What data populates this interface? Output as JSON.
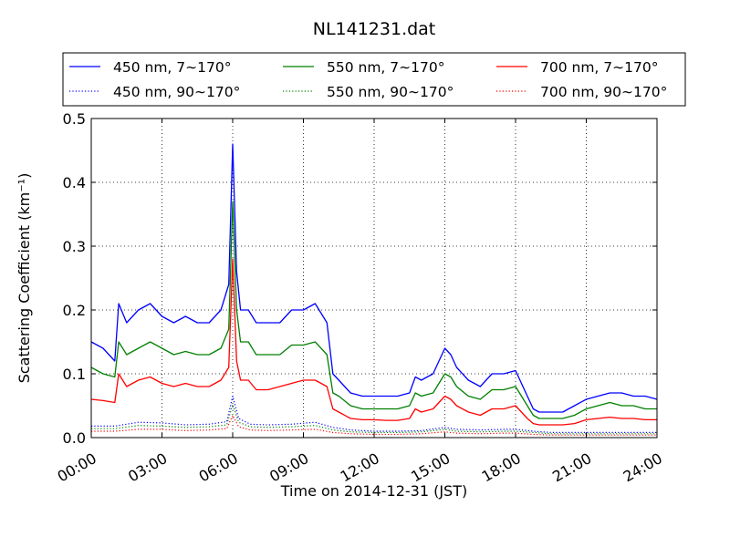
{
  "chart_data": {
    "type": "line",
    "title": "NL141231.dat",
    "xlabel": "Time on 2014-12-31 (JST)",
    "ylabel": "Scattering Coefficient (km⁻¹)",
    "xlim": [
      "00:00",
      "24:00"
    ],
    "ylim": [
      0,
      0.5
    ],
    "x_ticks": [
      "00:00",
      "03:00",
      "06:00",
      "09:00",
      "12:00",
      "15:00",
      "18:00",
      "21:00",
      "24:00"
    ],
    "y_ticks": [
      "0.0",
      "0.1",
      "0.2",
      "0.3",
      "0.4",
      "0.5"
    ],
    "grid": true,
    "legend_position": "top",
    "series": [
      {
        "name": "450 nm, 7∼170°",
        "color": "#0000ff",
        "style": "solid",
        "x": [
          "00:00",
          "00:30",
          "01:00",
          "01:10",
          "01:30",
          "02:00",
          "02:30",
          "03:00",
          "03:30",
          "04:00",
          "04:30",
          "05:00",
          "05:30",
          "05:50",
          "06:00",
          "06:10",
          "06:20",
          "06:40",
          "07:00",
          "07:30",
          "08:00",
          "08:30",
          "09:00",
          "09:30",
          "10:00",
          "10:15",
          "10:30",
          "11:00",
          "11:30",
          "12:00",
          "12:30",
          "13:00",
          "13:30",
          "13:45",
          "14:00",
          "14:30",
          "15:00",
          "15:15",
          "15:30",
          "16:00",
          "16:30",
          "17:00",
          "17:30",
          "18:00",
          "18:30",
          "18:45",
          "19:00",
          "19:30",
          "20:00",
          "20:30",
          "21:00",
          "21:30",
          "22:00",
          "22:30",
          "23:00",
          "23:30",
          "24:00"
        ],
        "y": [
          0.15,
          0.14,
          0.12,
          0.21,
          0.18,
          0.2,
          0.21,
          0.19,
          0.18,
          0.19,
          0.18,
          0.18,
          0.2,
          0.24,
          0.46,
          0.26,
          0.2,
          0.2,
          0.18,
          0.18,
          0.18,
          0.2,
          0.2,
          0.21,
          0.18,
          0.1,
          0.09,
          0.07,
          0.065,
          0.065,
          0.065,
          0.065,
          0.07,
          0.095,
          0.09,
          0.1,
          0.14,
          0.13,
          0.11,
          0.09,
          0.08,
          0.1,
          0.1,
          0.105,
          0.065,
          0.045,
          0.04,
          0.04,
          0.04,
          0.05,
          0.06,
          0.065,
          0.07,
          0.07,
          0.065,
          0.065,
          0.06
        ]
      },
      {
        "name": "450 nm, 90∼170°",
        "color": "#0000ff",
        "style": "dotted",
        "x": [
          "00:00",
          "01:00",
          "02:00",
          "03:00",
          "04:00",
          "05:00",
          "05:45",
          "06:00",
          "06:15",
          "06:45",
          "07:30",
          "08:30",
          "09:30",
          "10:15",
          "11:00",
          "12:00",
          "13:00",
          "14:00",
          "15:00",
          "15:30",
          "16:30",
          "17:30",
          "18:00",
          "18:45",
          "19:30",
          "21:00",
          "22:30",
          "24:00"
        ],
        "y": [
          0.018,
          0.018,
          0.024,
          0.023,
          0.02,
          0.021,
          0.025,
          0.065,
          0.03,
          0.021,
          0.02,
          0.021,
          0.024,
          0.016,
          0.012,
          0.01,
          0.01,
          0.011,
          0.016,
          0.013,
          0.012,
          0.013,
          0.013,
          0.01,
          0.008,
          0.008,
          0.008,
          0.008
        ]
      },
      {
        "name": "550 nm, 7∼170°",
        "color": "#008000",
        "style": "solid",
        "x": [
          "00:00",
          "00:30",
          "01:00",
          "01:10",
          "01:30",
          "02:00",
          "02:30",
          "03:00",
          "03:30",
          "04:00",
          "04:30",
          "05:00",
          "05:30",
          "05:50",
          "06:00",
          "06:10",
          "06:20",
          "06:40",
          "07:00",
          "07:30",
          "08:00",
          "08:30",
          "09:00",
          "09:30",
          "10:00",
          "10:15",
          "10:30",
          "11:00",
          "11:30",
          "12:00",
          "12:30",
          "13:00",
          "13:30",
          "13:45",
          "14:00",
          "14:30",
          "15:00",
          "15:15",
          "15:30",
          "16:00",
          "16:30",
          "17:00",
          "17:30",
          "18:00",
          "18:30",
          "18:45",
          "19:00",
          "19:30",
          "20:00",
          "20:30",
          "21:00",
          "21:30",
          "22:00",
          "22:30",
          "23:00",
          "23:30",
          "24:00"
        ],
        "y": [
          0.11,
          0.1,
          0.095,
          0.15,
          0.13,
          0.14,
          0.15,
          0.14,
          0.13,
          0.135,
          0.13,
          0.13,
          0.14,
          0.17,
          0.37,
          0.2,
          0.15,
          0.15,
          0.13,
          0.13,
          0.13,
          0.145,
          0.145,
          0.15,
          0.13,
          0.07,
          0.065,
          0.05,
          0.045,
          0.045,
          0.045,
          0.045,
          0.05,
          0.07,
          0.065,
          0.07,
          0.1,
          0.095,
          0.08,
          0.065,
          0.06,
          0.075,
          0.075,
          0.08,
          0.05,
          0.035,
          0.03,
          0.03,
          0.03,
          0.035,
          0.045,
          0.05,
          0.055,
          0.05,
          0.05,
          0.045,
          0.045
        ]
      },
      {
        "name": "550 nm, 90∼170°",
        "color": "#008000",
        "style": "dotted",
        "x": [
          "00:00",
          "01:00",
          "02:00",
          "03:00",
          "04:00",
          "05:00",
          "05:45",
          "06:00",
          "06:15",
          "06:45",
          "07:30",
          "08:30",
          "09:30",
          "10:15",
          "11:00",
          "12:00",
          "13:00",
          "14:00",
          "15:00",
          "15:30",
          "16:30",
          "17:30",
          "18:00",
          "18:45",
          "19:30",
          "21:00",
          "22:30",
          "24:00"
        ],
        "y": [
          0.014,
          0.014,
          0.019,
          0.018,
          0.016,
          0.017,
          0.02,
          0.052,
          0.024,
          0.017,
          0.016,
          0.017,
          0.019,
          0.012,
          0.009,
          0.008,
          0.008,
          0.009,
          0.013,
          0.01,
          0.009,
          0.01,
          0.01,
          0.008,
          0.006,
          0.006,
          0.006,
          0.006
        ]
      },
      {
        "name": "700 nm, 7∼170°",
        "color": "#ff0000",
        "style": "solid",
        "x": [
          "00:00",
          "00:30",
          "01:00",
          "01:10",
          "01:30",
          "02:00",
          "02:30",
          "03:00",
          "03:30",
          "04:00",
          "04:30",
          "05:00",
          "05:30",
          "05:50",
          "06:00",
          "06:10",
          "06:20",
          "06:40",
          "07:00",
          "07:30",
          "08:00",
          "08:30",
          "09:00",
          "09:30",
          "10:00",
          "10:15",
          "10:30",
          "11:00",
          "11:30",
          "12:00",
          "12:30",
          "13:00",
          "13:30",
          "13:45",
          "14:00",
          "14:30",
          "15:00",
          "15:15",
          "15:30",
          "16:00",
          "16:30",
          "17:00",
          "17:30",
          "18:00",
          "18:30",
          "18:45",
          "19:00",
          "19:30",
          "20:00",
          "20:30",
          "21:00",
          "21:30",
          "22:00",
          "22:30",
          "23:00",
          "23:30",
          "24:00"
        ],
        "y": [
          0.06,
          0.058,
          0.055,
          0.1,
          0.08,
          0.09,
          0.095,
          0.085,
          0.08,
          0.085,
          0.08,
          0.08,
          0.09,
          0.11,
          0.28,
          0.12,
          0.09,
          0.09,
          0.075,
          0.075,
          0.08,
          0.085,
          0.09,
          0.09,
          0.08,
          0.045,
          0.04,
          0.03,
          0.028,
          0.028,
          0.027,
          0.027,
          0.03,
          0.045,
          0.04,
          0.045,
          0.065,
          0.06,
          0.05,
          0.04,
          0.035,
          0.045,
          0.045,
          0.05,
          0.03,
          0.022,
          0.02,
          0.02,
          0.02,
          0.022,
          0.028,
          0.03,
          0.032,
          0.03,
          0.03,
          0.028,
          0.028
        ]
      },
      {
        "name": "700 nm, 90∼170°",
        "color": "#ff0000",
        "style": "dotted",
        "x": [
          "00:00",
          "01:00",
          "02:00",
          "03:00",
          "04:00",
          "05:00",
          "05:45",
          "06:00",
          "06:15",
          "06:45",
          "07:30",
          "08:30",
          "09:30",
          "10:15",
          "11:00",
          "12:00",
          "13:00",
          "14:00",
          "15:00",
          "15:30",
          "16:30",
          "17:30",
          "18:00",
          "18:45",
          "19:30",
          "21:00",
          "22:30",
          "24:00"
        ],
        "y": [
          0.01,
          0.01,
          0.013,
          0.013,
          0.011,
          0.012,
          0.014,
          0.035,
          0.017,
          0.012,
          0.011,
          0.012,
          0.013,
          0.008,
          0.006,
          0.005,
          0.005,
          0.006,
          0.009,
          0.007,
          0.006,
          0.007,
          0.007,
          0.005,
          0.004,
          0.004,
          0.004,
          0.004
        ]
      }
    ]
  }
}
